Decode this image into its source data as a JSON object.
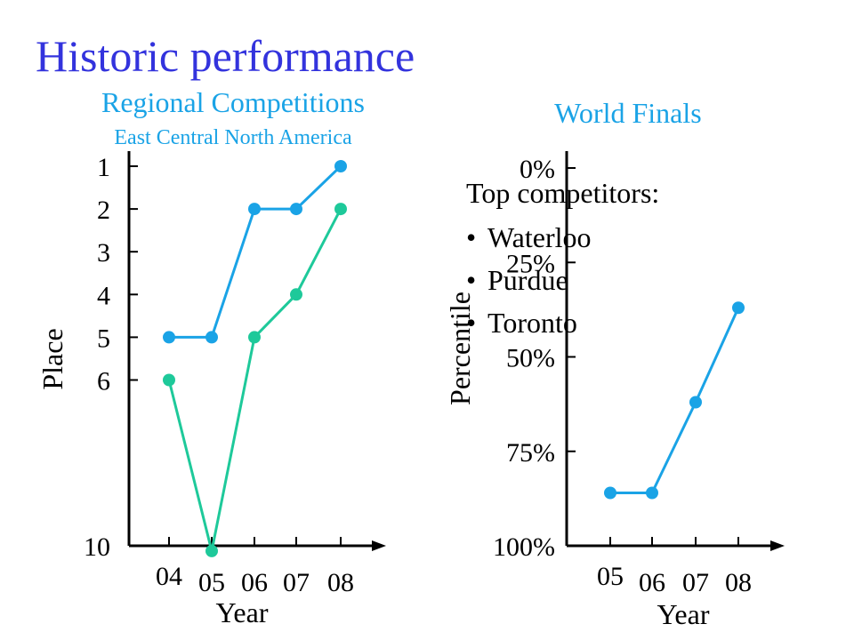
{
  "slide": {
    "title": "Historic performance"
  },
  "colors": {
    "title": "#3333dd",
    "subtitle": "#1aa3e6",
    "series_blue": "#1aa3e6",
    "series_green": "#1ec99a",
    "axis": "#000000",
    "text": "#000000"
  },
  "chart_data": [
    {
      "type": "line",
      "title": "Regional Competitions",
      "subtitle": "East Central North America",
      "xlabel": "Year",
      "ylabel": "Place",
      "categories": [
        "04",
        "05",
        "06",
        "07",
        "08"
      ],
      "yticks": [
        "1",
        "2",
        "3",
        "4",
        "5",
        "6",
        "10"
      ],
      "ylim": [
        10,
        1
      ],
      "y_inverted": true,
      "grid": false,
      "series": [
        {
          "values": [
            5,
            5,
            2,
            2,
            1
          ],
          "color": "#1aa3e6"
        },
        {
          "values": [
            6,
            10,
            5,
            4,
            2
          ],
          "color": "#1ec99a"
        }
      ]
    },
    {
      "type": "line",
      "title": "World Finals",
      "xlabel": "Year",
      "ylabel": "Percentile",
      "categories": [
        "05",
        "06",
        "07",
        "08"
      ],
      "yticks": [
        "0%",
        "25%",
        "50%",
        "75%",
        "100%"
      ],
      "ylim": [
        100,
        0
      ],
      "y_inverted": true,
      "grid": false,
      "series": [
        {
          "values": [
            86,
            86,
            62,
            37
          ],
          "color": "#1aa3e6"
        }
      ]
    }
  ],
  "callout": {
    "heading": "Top competitors:",
    "items": [
      "Waterloo",
      "Purdue",
      "Toronto"
    ]
  }
}
